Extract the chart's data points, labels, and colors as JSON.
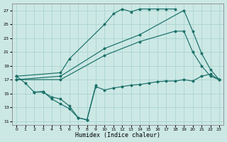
{
  "background_color": "#cce8e5",
  "grid_color": "#aad4d0",
  "line_color": "#1a7068",
  "xlabel": "Humidex (Indice chaleur)",
  "xlim": [
    -0.5,
    23.5
  ],
  "ylim": [
    10.5,
    28.0
  ],
  "xticks": [
    0,
    1,
    2,
    3,
    4,
    5,
    6,
    7,
    8,
    9,
    10,
    11,
    12,
    13,
    14,
    15,
    16,
    17,
    18,
    19,
    20,
    21,
    22,
    23
  ],
  "yticks": [
    11,
    13,
    15,
    17,
    19,
    21,
    23,
    25,
    27
  ],
  "line_upper_x": [
    0,
    5,
    6,
    10,
    11,
    12,
    13,
    14,
    15,
    16,
    17,
    18
  ],
  "line_upper_y": [
    17.5,
    18.0,
    20.0,
    25.0,
    26.5,
    27.2,
    26.8,
    27.2,
    27.2,
    27.2,
    27.2,
    27.2
  ],
  "line_mid1_x": [
    0,
    5,
    10,
    14,
    19,
    20,
    21,
    22,
    23
  ],
  "line_mid1_y": [
    17.0,
    17.5,
    21.5,
    23.5,
    27.0,
    24.0,
    20.8,
    18.5,
    17.0
  ],
  "line_mid2_x": [
    0,
    5,
    10,
    14,
    18,
    19,
    20,
    21,
    22,
    23
  ],
  "line_mid2_y": [
    17.0,
    17.0,
    20.5,
    22.5,
    24.0,
    24.0,
    21.0,
    19.0,
    17.5,
    17.0
  ],
  "line_lower_x": [
    0,
    1,
    2,
    3,
    4,
    5,
    6,
    7,
    8,
    9,
    10,
    11,
    12,
    13,
    14,
    15,
    16,
    17,
    18,
    19,
    20,
    21,
    22,
    23
  ],
  "line_lower_y": [
    17.5,
    16.5,
    15.2,
    15.2,
    14.5,
    14.2,
    13.2,
    11.5,
    11.2,
    16.0,
    15.5,
    15.8,
    16.0,
    16.2,
    16.3,
    16.5,
    16.7,
    16.8,
    16.8,
    17.0,
    16.8,
    17.5,
    17.8,
    17.0
  ],
  "line_zigzag_x": [
    2,
    3,
    4,
    5,
    6,
    7,
    8,
    9
  ],
  "line_zigzag_y": [
    15.2,
    15.3,
    14.2,
    13.5,
    12.8,
    11.5,
    11.2,
    16.2
  ]
}
